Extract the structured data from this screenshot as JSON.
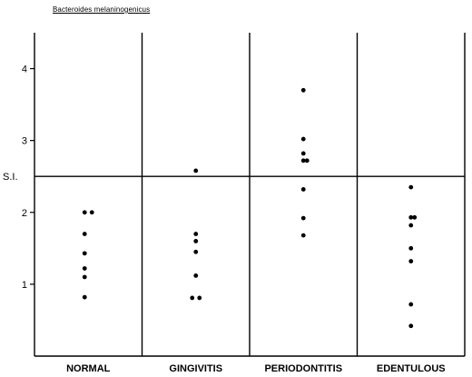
{
  "chart_data": {
    "type": "scatter",
    "title": "Bacteroides melaninogenicus",
    "ylabel": "S.I.",
    "ylim": [
      0,
      4.5
    ],
    "yticks": [
      1,
      2,
      3,
      4
    ],
    "reference_line": 2.5,
    "categories": [
      "NORMAL",
      "GINGIVITIS",
      "PERIODONTITIS",
      "EDENTULOUS"
    ],
    "series": [
      {
        "category": "NORMAL",
        "points": [
          {
            "offset": -1,
            "y": 2.0
          },
          {
            "offset": 1,
            "y": 2.0
          },
          {
            "offset": -1,
            "y": 1.7
          },
          {
            "offset": -1,
            "y": 1.43
          },
          {
            "offset": -1,
            "y": 1.22
          },
          {
            "offset": -1,
            "y": 1.1
          },
          {
            "offset": -1,
            "y": 0.82
          }
        ]
      },
      {
        "category": "GINGIVITIS",
        "points": [
          {
            "offset": 0,
            "y": 2.58
          },
          {
            "offset": 0,
            "y": 1.7
          },
          {
            "offset": 0,
            "y": 1.6
          },
          {
            "offset": 0,
            "y": 1.45
          },
          {
            "offset": 0,
            "y": 1.12
          },
          {
            "offset": -1,
            "y": 0.81
          },
          {
            "offset": 1,
            "y": 0.81
          }
        ]
      },
      {
        "category": "PERIODONTITIS",
        "points": [
          {
            "offset": 0,
            "y": 3.7
          },
          {
            "offset": 0,
            "y": 3.02
          },
          {
            "offset": 0,
            "y": 2.82
          },
          {
            "offset": 0,
            "y": 2.72
          },
          {
            "offset": 1,
            "y": 2.72
          },
          {
            "offset": 0,
            "y": 2.32
          },
          {
            "offset": 0,
            "y": 1.92
          },
          {
            "offset": 0,
            "y": 1.68
          }
        ]
      },
      {
        "category": "EDENTULOUS",
        "points": [
          {
            "offset": 0,
            "y": 2.35
          },
          {
            "offset": 0,
            "y": 1.93
          },
          {
            "offset": 1,
            "y": 1.93
          },
          {
            "offset": 0,
            "y": 1.82
          },
          {
            "offset": 0,
            "y": 1.5
          },
          {
            "offset": 0,
            "y": 1.32
          },
          {
            "offset": 0,
            "y": 0.72
          },
          {
            "offset": 0,
            "y": 0.42
          }
        ]
      }
    ],
    "grid": false
  }
}
